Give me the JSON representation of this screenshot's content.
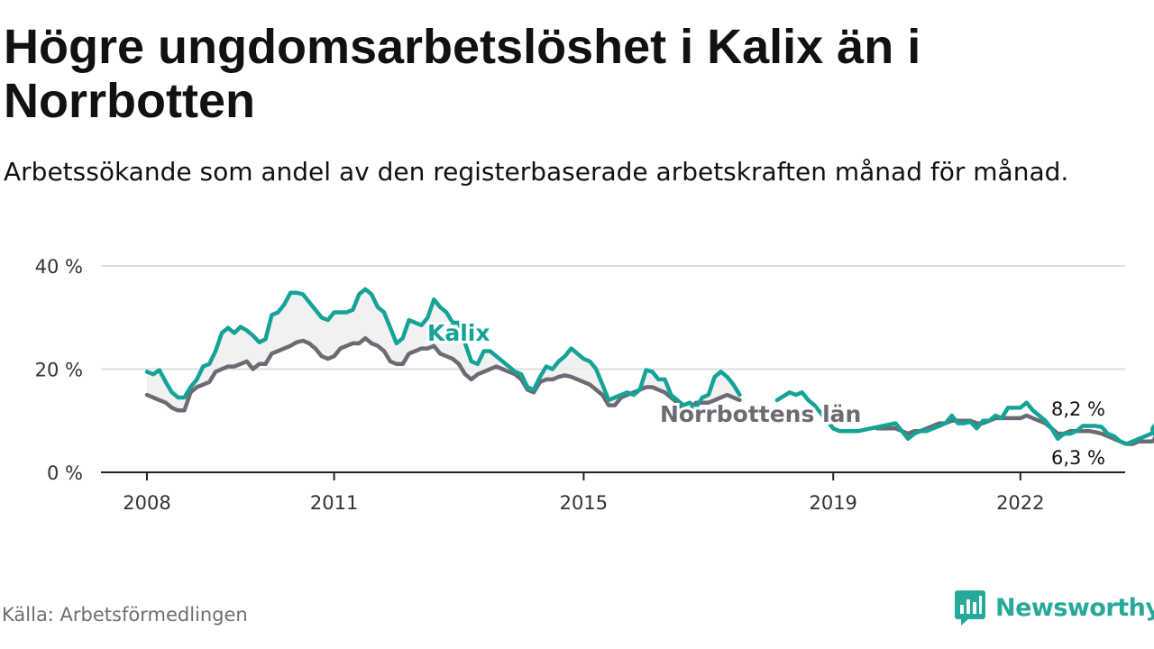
{
  "header": {
    "title": "Högre ungdomsarbetslöshet i Kalix än i Norrbotten",
    "subtitle": "Arbetssökande som andel av den registerbaserade arbetskraften månad för månad."
  },
  "footer": {
    "source": "Källa: Arbetsförmedlingen",
    "brand": "Newsworthy"
  },
  "colors": {
    "kalix": "#14a396",
    "norrbotten": "#6e6a73",
    "grid": "#dddddd",
    "axis": "#222222",
    "brand": "#27a99a"
  },
  "chart_data": {
    "type": "line",
    "title": "Högre ungdomsarbetslöshet i Kalix än i Norrbotten",
    "xlabel": "",
    "ylabel": "",
    "xlim": [
      2007.7,
      2023.7
    ],
    "ylim": [
      0,
      40
    ],
    "y_ticks": [
      {
        "value": 0,
        "label": "0 %"
      },
      {
        "value": 20,
        "label": "20 %"
      },
      {
        "value": 40,
        "label": "40 %"
      }
    ],
    "x_ticks": [
      {
        "value": 2008.0,
        "label": "2008"
      },
      {
        "value": 2011.0,
        "label": "2011"
      },
      {
        "value": 2015.0,
        "label": "2015"
      },
      {
        "value": 2019.0,
        "label": "2019"
      },
      {
        "value": 2022.0,
        "label": "2022"
      }
    ],
    "series": [
      {
        "name": "Kalix",
        "label": "Kalix",
        "color": "#14a396",
        "end_label": "8,2 %",
        "points": [
          [
            2008.0,
            19.5
          ],
          [
            2008.1,
            19.0
          ],
          [
            2008.2,
            19.8
          ],
          [
            2008.3,
            17.5
          ],
          [
            2008.4,
            15.5
          ],
          [
            2008.5,
            14.5
          ],
          [
            2008.6,
            14.5
          ],
          [
            2008.7,
            16.5
          ],
          [
            2008.8,
            18.0
          ],
          [
            2008.9,
            20.5
          ],
          [
            2009.0,
            21.0
          ],
          [
            2009.1,
            23.5
          ],
          [
            2009.2,
            27.0
          ],
          [
            2009.3,
            28.0
          ],
          [
            2009.4,
            27.0
          ],
          [
            2009.5,
            28.2
          ],
          [
            2009.6,
            27.5
          ],
          [
            2009.7,
            26.5
          ],
          [
            2009.8,
            25.2
          ],
          [
            2009.9,
            25.8
          ],
          [
            2010.0,
            30.5
          ],
          [
            2010.1,
            31.0
          ],
          [
            2010.2,
            32.5
          ],
          [
            2010.3,
            34.8
          ],
          [
            2010.4,
            34.8
          ],
          [
            2010.5,
            34.5
          ],
          [
            2010.6,
            33.0
          ],
          [
            2010.7,
            31.5
          ],
          [
            2010.8,
            30.0
          ],
          [
            2010.9,
            29.5
          ],
          [
            2011.0,
            31.0
          ],
          [
            2011.1,
            31.0
          ],
          [
            2011.2,
            31.0
          ],
          [
            2011.3,
            31.5
          ],
          [
            2011.4,
            34.5
          ],
          [
            2011.5,
            35.5
          ],
          [
            2011.6,
            34.5
          ],
          [
            2011.7,
            32.0
          ],
          [
            2011.8,
            31.0
          ],
          [
            2011.9,
            28.0
          ],
          [
            2012.0,
            25.0
          ],
          [
            2012.1,
            26.0
          ],
          [
            2012.2,
            29.5
          ],
          [
            2012.3,
            29.0
          ],
          [
            2012.4,
            28.5
          ],
          [
            2012.5,
            30.0
          ],
          [
            2012.6,
            33.5
          ],
          [
            2012.7,
            32.0
          ],
          [
            2012.8,
            31.0
          ],
          [
            2012.9,
            29.0
          ],
          [
            2013.0,
            29.0
          ],
          [
            2013.1,
            25.0
          ],
          [
            2013.2,
            21.5
          ],
          [
            2013.3,
            21.0
          ],
          [
            2013.4,
            23.5
          ],
          [
            2013.5,
            23.5
          ],
          [
            2013.6,
            22.5
          ],
          [
            2013.7,
            21.5
          ],
          [
            2013.8,
            20.5
          ],
          [
            2013.9,
            19.5
          ],
          [
            2014.0,
            19.0
          ],
          [
            2014.1,
            16.5
          ],
          [
            2014.2,
            16.0
          ],
          [
            2014.3,
            18.5
          ],
          [
            2014.4,
            20.5
          ],
          [
            2014.5,
            20.0
          ],
          [
            2014.6,
            21.5
          ],
          [
            2014.7,
            22.5
          ],
          [
            2014.8,
            24.0
          ],
          [
            2014.9,
            23.0
          ],
          [
            2015.0,
            22.0
          ],
          [
            2015.1,
            21.5
          ],
          [
            2015.2,
            20.0
          ],
          [
            2015.3,
            17.0
          ],
          [
            2015.4,
            14.0
          ],
          [
            2015.5,
            14.5
          ],
          [
            2015.6,
            15.0
          ],
          [
            2015.7,
            15.5
          ],
          [
            2015.8,
            15.0
          ],
          [
            2015.9,
            16.0
          ],
          [
            2016.0,
            19.8
          ],
          [
            2016.1,
            19.5
          ],
          [
            2016.2,
            18.0
          ],
          [
            2016.3,
            18.0
          ],
          [
            2016.4,
            15.0
          ],
          [
            2016.5,
            14.0
          ],
          [
            2016.6,
            13.0
          ],
          [
            2016.7,
            13.5
          ],
          [
            2016.8,
            12.5
          ],
          [
            2016.9,
            14.5
          ],
          [
            2017.0,
            15.0
          ],
          [
            2017.1,
            18.5
          ],
          [
            2017.2,
            19.5
          ],
          [
            2017.3,
            18.5
          ],
          [
            2017.4,
            17.0
          ],
          [
            2017.5,
            15.0
          ],
          [
            2018.1,
            14.0
          ],
          [
            2018.3,
            15.5
          ],
          [
            2018.4,
            15.0
          ],
          [
            2018.5,
            15.5
          ],
          [
            2018.6,
            14.0
          ],
          [
            2018.7,
            13.0
          ],
          [
            2019.0,
            8.5
          ],
          [
            2019.1,
            8.0
          ],
          [
            2019.4,
            8.0
          ],
          [
            2019.6,
            8.5
          ],
          [
            2019.8,
            9.0
          ],
          [
            2020.0,
            9.5
          ],
          [
            2020.1,
            8.0
          ],
          [
            2020.2,
            6.5
          ],
          [
            2020.3,
            7.5
          ],
          [
            2020.4,
            8.0
          ],
          [
            2020.5,
            8.0
          ],
          [
            2020.6,
            8.5
          ],
          [
            2020.7,
            9.0
          ],
          [
            2020.8,
            9.5
          ],
          [
            2020.9,
            11.0
          ],
          [
            2021.0,
            9.5
          ],
          [
            2021.1,
            9.5
          ],
          [
            2021.2,
            9.8
          ],
          [
            2021.3,
            8.5
          ],
          [
            2021.4,
            10.0
          ],
          [
            2021.5,
            10.0
          ],
          [
            2021.6,
            11.0
          ],
          [
            2021.7,
            10.5
          ],
          [
            2021.8,
            12.5
          ],
          [
            2021.9,
            12.5
          ],
          [
            2022.0,
            12.5
          ],
          [
            2022.1,
            13.5
          ],
          [
            2022.2,
            12.0
          ],
          [
            2022.3,
            11.0
          ],
          [
            2022.4,
            10.0
          ],
          [
            2022.5,
            8.5
          ],
          [
            2022.6,
            6.5
          ],
          [
            2022.7,
            7.5
          ],
          [
            2022.8,
            7.5
          ],
          [
            2022.9,
            8.0
          ],
          [
            2023.0,
            9.0
          ],
          [
            2023.1,
            9.0
          ],
          [
            2023.2,
            9.0
          ],
          [
            2023.3,
            8.8
          ],
          [
            2023.4,
            7.5
          ],
          [
            2023.5,
            7.0
          ],
          [
            2023.6,
            6.0
          ],
          [
            2023.7,
            5.5
          ],
          [
            2023.8,
            6.0
          ],
          [
            2023.9,
            6.5
          ],
          [
            2024.0,
            7.0
          ],
          [
            2024.1,
            7.5
          ],
          [
            2024.2,
            8.2
          ]
        ]
      },
      {
        "name": "Norrbottens län",
        "label": "Norrbottens län",
        "color": "#6e6a73",
        "end_label": "6,3 %",
        "points": [
          [
            2008.0,
            15.0
          ],
          [
            2008.1,
            14.5
          ],
          [
            2008.2,
            14.0
          ],
          [
            2008.3,
            13.5
          ],
          [
            2008.4,
            12.5
          ],
          [
            2008.5,
            12.0
          ],
          [
            2008.6,
            12.0
          ],
          [
            2008.7,
            15.5
          ],
          [
            2008.8,
            16.5
          ],
          [
            2008.9,
            17.0
          ],
          [
            2009.0,
            17.5
          ],
          [
            2009.1,
            19.5
          ],
          [
            2009.2,
            20.0
          ],
          [
            2009.3,
            20.5
          ],
          [
            2009.4,
            20.5
          ],
          [
            2009.5,
            21.0
          ],
          [
            2009.6,
            21.5
          ],
          [
            2009.7,
            20.0
          ],
          [
            2009.8,
            21.0
          ],
          [
            2009.9,
            21.0
          ],
          [
            2010.0,
            23.0
          ],
          [
            2010.1,
            23.5
          ],
          [
            2010.2,
            24.0
          ],
          [
            2010.3,
            24.5
          ],
          [
            2010.4,
            25.2
          ],
          [
            2010.5,
            25.5
          ],
          [
            2010.6,
            25.0
          ],
          [
            2010.7,
            24.0
          ],
          [
            2010.8,
            22.5
          ],
          [
            2010.9,
            22.0
          ],
          [
            2011.0,
            22.5
          ],
          [
            2011.1,
            24.0
          ],
          [
            2011.2,
            24.5
          ],
          [
            2011.3,
            25.0
          ],
          [
            2011.4,
            25.0
          ],
          [
            2011.5,
            26.0
          ],
          [
            2011.6,
            25.0
          ],
          [
            2011.7,
            24.5
          ],
          [
            2011.8,
            23.5
          ],
          [
            2011.9,
            21.5
          ],
          [
            2012.0,
            21.0
          ],
          [
            2012.1,
            21.0
          ],
          [
            2012.2,
            23.0
          ],
          [
            2012.3,
            23.5
          ],
          [
            2012.4,
            24.0
          ],
          [
            2012.5,
            24.0
          ],
          [
            2012.6,
            24.5
          ],
          [
            2012.7,
            23.0
          ],
          [
            2012.8,
            22.5
          ],
          [
            2012.9,
            22.0
          ],
          [
            2013.0,
            21.0
          ],
          [
            2013.1,
            19.0
          ],
          [
            2013.2,
            18.0
          ],
          [
            2013.3,
            19.0
          ],
          [
            2013.4,
            19.5
          ],
          [
            2013.5,
            20.0
          ],
          [
            2013.6,
            20.5
          ],
          [
            2013.7,
            20.0
          ],
          [
            2013.8,
            19.5
          ],
          [
            2013.9,
            19.0
          ],
          [
            2014.0,
            18.0
          ],
          [
            2014.1,
            16.0
          ],
          [
            2014.2,
            15.5
          ],
          [
            2014.3,
            17.5
          ],
          [
            2014.4,
            18.0
          ],
          [
            2014.5,
            18.0
          ],
          [
            2014.6,
            18.5
          ],
          [
            2014.7,
            18.8
          ],
          [
            2014.8,
            18.5
          ],
          [
            2014.9,
            18.0
          ],
          [
            2015.0,
            17.5
          ],
          [
            2015.1,
            17.0
          ],
          [
            2015.2,
            16.0
          ],
          [
            2015.3,
            15.0
          ],
          [
            2015.4,
            13.0
          ],
          [
            2015.5,
            13.0
          ],
          [
            2015.6,
            14.5
          ],
          [
            2015.7,
            15.0
          ],
          [
            2015.8,
            15.5
          ],
          [
            2015.9,
            16.0
          ],
          [
            2016.0,
            16.5
          ],
          [
            2016.1,
            16.5
          ],
          [
            2016.2,
            16.0
          ],
          [
            2016.3,
            15.5
          ],
          [
            2016.4,
            14.5
          ],
          [
            2016.5,
            13.5
          ],
          [
            2016.6,
            12.0
          ],
          [
            2016.7,
            12.0
          ],
          [
            2016.8,
            13.5
          ],
          [
            2016.9,
            13.5
          ],
          [
            2017.0,
            13.5
          ],
          [
            2017.1,
            14.0
          ],
          [
            2017.2,
            14.5
          ],
          [
            2017.3,
            15.0
          ],
          [
            2017.4,
            14.5
          ],
          [
            2017.5,
            14.0
          ],
          [
            2019.7,
            8.5
          ],
          [
            2019.8,
            8.5
          ],
          [
            2019.9,
            8.5
          ],
          [
            2020.0,
            8.5
          ],
          [
            2020.1,
            8.0
          ],
          [
            2020.2,
            7.5
          ],
          [
            2020.3,
            8.0
          ],
          [
            2020.4,
            8.0
          ],
          [
            2020.5,
            8.5
          ],
          [
            2020.6,
            9.0
          ],
          [
            2020.7,
            9.5
          ],
          [
            2020.8,
            9.5
          ],
          [
            2020.9,
            10.0
          ],
          [
            2021.0,
            10.0
          ],
          [
            2021.1,
            10.0
          ],
          [
            2021.2,
            10.0
          ],
          [
            2021.3,
            9.5
          ],
          [
            2021.4,
            9.5
          ],
          [
            2021.5,
            10.0
          ],
          [
            2021.6,
            10.5
          ],
          [
            2021.7,
            10.5
          ],
          [
            2021.8,
            10.5
          ],
          [
            2021.9,
            10.5
          ],
          [
            2022.0,
            10.5
          ],
          [
            2022.1,
            11.0
          ],
          [
            2022.2,
            10.5
          ],
          [
            2022.3,
            10.0
          ],
          [
            2022.4,
            9.5
          ],
          [
            2022.5,
            8.5
          ],
          [
            2022.6,
            7.5
          ],
          [
            2022.7,
            7.5
          ],
          [
            2022.8,
            8.0
          ],
          [
            2022.9,
            8.0
          ],
          [
            2023.0,
            8.0
          ],
          [
            2023.1,
            8.0
          ],
          [
            2023.2,
            7.8
          ],
          [
            2023.3,
            7.5
          ],
          [
            2023.4,
            7.0
          ],
          [
            2023.5,
            6.5
          ],
          [
            2023.6,
            6.0
          ],
          [
            2023.7,
            5.5
          ],
          [
            2023.8,
            5.5
          ],
          [
            2023.9,
            6.0
          ],
          [
            2024.0,
            6.0
          ],
          [
            2024.1,
            6.0
          ],
          [
            2024.2,
            6.3
          ]
        ]
      }
    ]
  }
}
